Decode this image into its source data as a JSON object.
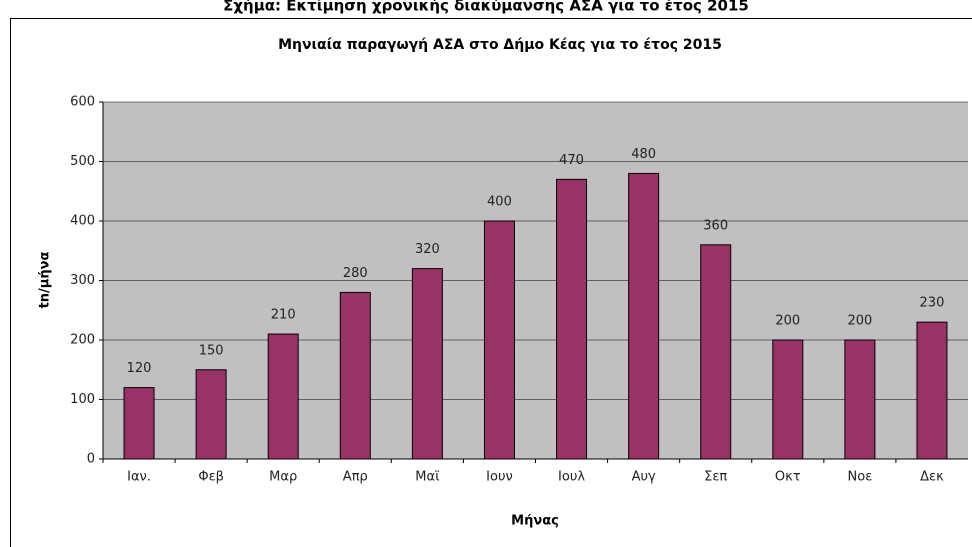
{
  "caption": "Σχήμα: Εκτίμηση χρονικής διακύμανσης ΑΣΑ για το έτος 2015",
  "chart_data": {
    "type": "bar",
    "title": "Μηνιαία παραγωγή ΑΣΑ στο Δήμο Κέας για το έτος 2015",
    "x_label": "Μήνας",
    "y_label": "tn/μήνα",
    "categories": [
      "Ιαν.",
      "Φεβ",
      "Μαρ",
      "Απρ",
      "Μαϊ",
      "Ιουν",
      "Ιουλ",
      "Αυγ",
      "Σεπ",
      "Οκτ",
      "Νοε",
      "Δεκ"
    ],
    "values": [
      120,
      150,
      210,
      280,
      320,
      400,
      470,
      480,
      360,
      200,
      200,
      230
    ],
    "color": "#993366",
    "ylim": [
      0,
      600
    ],
    "yticks": [
      0,
      100,
      200,
      300,
      400,
      500,
      600
    ],
    "grid": true
  }
}
